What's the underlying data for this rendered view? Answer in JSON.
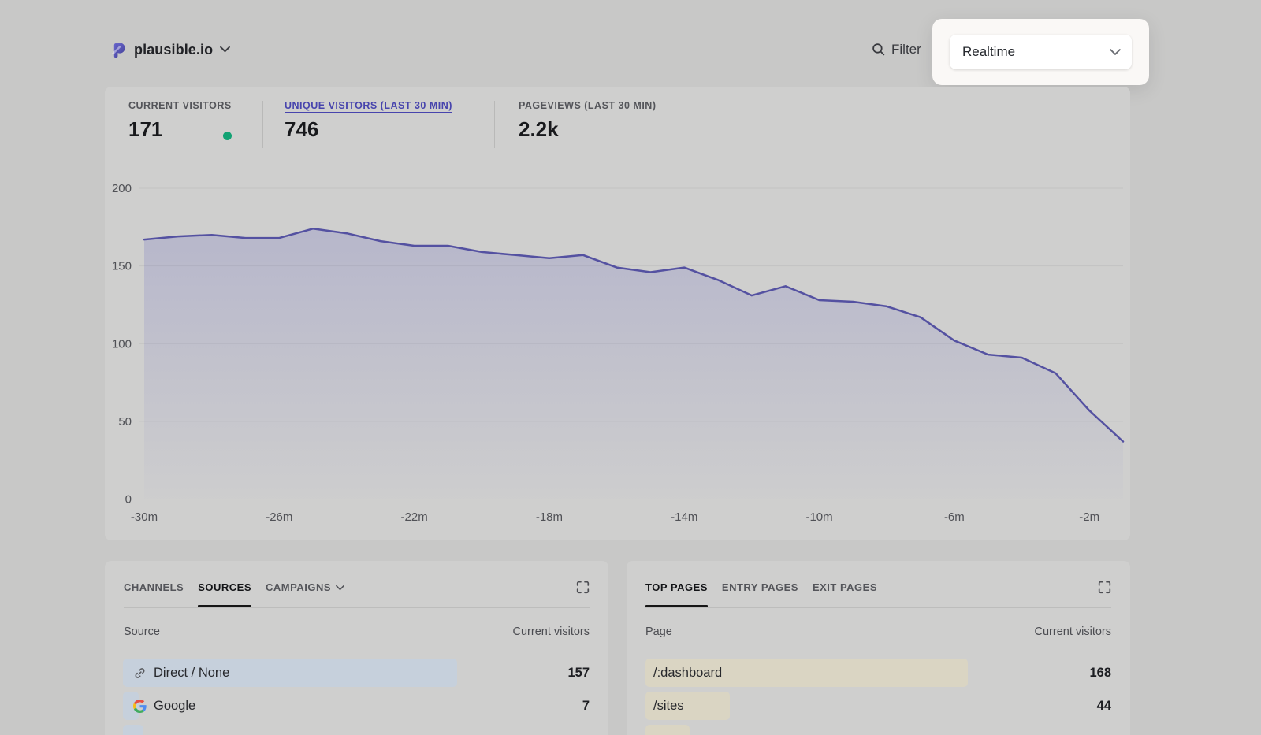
{
  "header": {
    "site_name": "plausible.io",
    "filter_label": "Filter",
    "period_selector": {
      "value": "Realtime"
    }
  },
  "stats": {
    "active_metric": "UNIQUE VISITORS (LAST 30 MIN)",
    "items": [
      {
        "label": "CURRENT VISITORS",
        "value": "171",
        "live_dot": true
      },
      {
        "label": "UNIQUE VISITORS (LAST 30 MIN)",
        "value": "746"
      },
      {
        "label": "PAGEVIEWS (LAST 30 MIN)",
        "value": "2.2k"
      }
    ]
  },
  "chart_data": {
    "type": "area",
    "title": "Unique visitors over the last 30 minutes",
    "x": [
      -30,
      -29,
      -28,
      -27,
      -26,
      -25,
      -24,
      -23,
      -22,
      -21,
      -20,
      -19,
      -18,
      -17,
      -16,
      -15,
      -14,
      -13,
      -12,
      -11,
      -10,
      -9,
      -8,
      -7,
      -6,
      -5,
      -4,
      -3,
      -2,
      -1
    ],
    "series": [
      {
        "name": "Unique visitors",
        "values": [
          167,
          169,
          170,
          168,
          168,
          174,
          171,
          166,
          163,
          163,
          159,
          157,
          155,
          157,
          149,
          146,
          149,
          141,
          131,
          137,
          128,
          127,
          124,
          117,
          102,
          93,
          91,
          81,
          57,
          37
        ]
      }
    ],
    "ylim": [
      0,
      200
    ],
    "yticks": [
      0,
      50,
      100,
      150,
      200
    ],
    "xticks": [
      {
        "x": -30,
        "label": "-30m"
      },
      {
        "x": -26,
        "label": "-26m"
      },
      {
        "x": -22,
        "label": "-22m"
      },
      {
        "x": -18,
        "label": "-18m"
      },
      {
        "x": -14,
        "label": "-14m"
      },
      {
        "x": -10,
        "label": "-10m"
      },
      {
        "x": -6,
        "label": "-6m"
      },
      {
        "x": -2,
        "label": "-2m"
      }
    ],
    "grid": true,
    "legend": false,
    "line_color": "#5451a1",
    "fill_color_top": "rgba(80,80,190,0.22)",
    "fill_color_bottom": "rgba(80,80,190,0.01)"
  },
  "sources_panel": {
    "tabs": [
      {
        "label": "CHANNELS",
        "active": false
      },
      {
        "label": "SOURCES",
        "active": true
      },
      {
        "label": "CAMPAIGNS",
        "active": false,
        "has_dropdown": true
      }
    ],
    "columns": {
      "left": "Source",
      "right": "Current visitors"
    },
    "rows": [
      {
        "label": "Direct / None",
        "value": 157,
        "icon": "link-icon"
      },
      {
        "label": "Google",
        "value": 7,
        "icon": "google-icon"
      }
    ],
    "partial_third_row": true
  },
  "pages_panel": {
    "tabs": [
      {
        "label": "TOP PAGES",
        "active": true
      },
      {
        "label": "ENTRY PAGES",
        "active": false
      },
      {
        "label": "EXIT PAGES",
        "active": false
      }
    ],
    "columns": {
      "left": "Page",
      "right": "Current visitors"
    },
    "rows": [
      {
        "label": "/:dashboard",
        "value": 168
      },
      {
        "label": "/sites",
        "value": 44
      }
    ],
    "partial_third_row": true
  }
}
